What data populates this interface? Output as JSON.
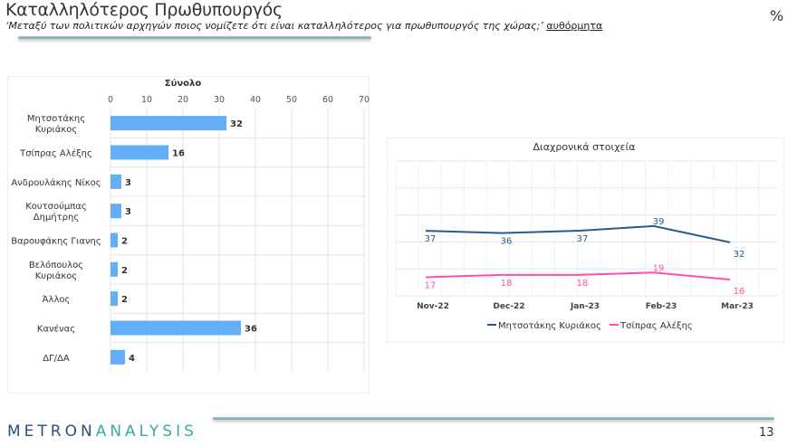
{
  "header": {
    "title": "Καταλληλότερος Πρωθυπουργός",
    "question": "‘Μεταξύ των πολιτικών αρχηγών ποιος νομίζετε ότι είναι καταλληλότερος για πρωθυπουργός της χώρας;’",
    "question_tag": "αυθόρμητα",
    "unit": "%"
  },
  "footer": {
    "logo_part1": "METRON",
    "logo_part2": "ANALYSIS",
    "page_number": "13"
  },
  "chart_data": [
    {
      "type": "bar",
      "orientation": "horizontal",
      "title": "Σύνολο",
      "categories": [
        "Μητσοτάκης Κυριάκος",
        "Τσίπρας Αλέξης",
        "Ανδρουλάκης Νίκος",
        "Κουτσούμπας Δημήτρης",
        "Βαρουφάκης Γιανης",
        "Βελόπουλος Κυριάκος",
        "Άλλος",
        "Κανένας",
        "ΔΓ/ΔΑ"
      ],
      "values": [
        32,
        16,
        3,
        3,
        2,
        2,
        2,
        36,
        4
      ],
      "xlim": [
        0,
        70
      ],
      "xticks": [
        0,
        10,
        20,
        30,
        40,
        50,
        60,
        70
      ],
      "grid": true,
      "color": "#62aef7"
    },
    {
      "type": "line",
      "title": "Διαχρονικά στοιχεία",
      "categories": [
        "Nov-22",
        "Dec-22",
        "Jan-23",
        "Feb-23",
        "Mar-23"
      ],
      "series": [
        {
          "name": "Μητσοτάκης Κυριάκος",
          "values": [
            37,
            36,
            37,
            39,
            32
          ],
          "color": "#2a5a8c"
        },
        {
          "name": "Τσίπρας Αλέξης",
          "values": [
            17,
            18,
            18,
            19,
            16
          ],
          "color": "#ff4fa8"
        }
      ],
      "ylim": [
        9,
        67
      ],
      "y_axis_labels": false,
      "grid": true,
      "legend": "bottom"
    }
  ]
}
